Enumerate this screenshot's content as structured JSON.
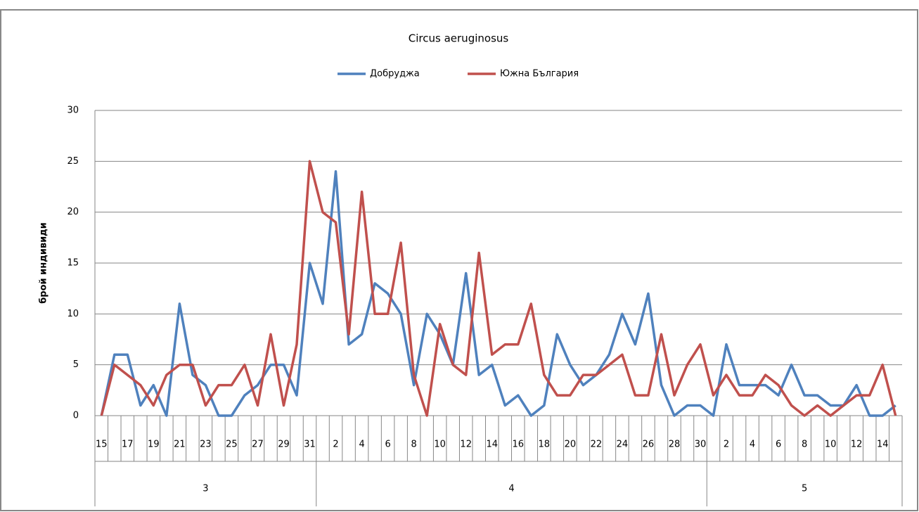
{
  "chart_data": {
    "type": "line",
    "title": "Circus aeruginosus",
    "y_label": "брой индивиди",
    "categories": [
      "15",
      null,
      "17",
      null,
      "19",
      null,
      "21",
      null,
      "23",
      null,
      "25",
      null,
      "27",
      null,
      "29",
      null,
      "31",
      null,
      "2",
      null,
      "4",
      null,
      "6",
      null,
      "8",
      null,
      "10",
      null,
      "12",
      null,
      "14",
      null,
      "16",
      null,
      "18",
      null,
      "20",
      null,
      "22",
      null,
      "24",
      null,
      "26",
      null,
      "28",
      null,
      "30",
      null,
      "2",
      null,
      "4",
      null,
      "6",
      null,
      "8",
      null,
      "10",
      null,
      "12",
      null,
      "14",
      null
    ],
    "groups": [
      {
        "name": "3",
        "size": 17
      },
      {
        "name": "4",
        "size": 30
      },
      {
        "name": "5",
        "size": 15
      }
    ],
    "series": [
      {
        "name": "Добруджа",
        "color": "#4f81bd",
        "values": [
          0,
          6,
          6,
          1,
          3,
          0,
          11,
          4,
          3,
          0,
          0,
          2,
          3,
          5,
          5,
          2,
          15,
          11,
          24,
          7,
          8,
          13,
          12,
          10,
          3,
          10,
          8,
          5,
          14,
          4,
          5,
          1,
          2,
          0,
          1,
          8,
          5,
          3,
          4,
          6,
          10,
          7,
          12,
          3,
          0,
          1,
          1,
          0,
          7,
          3,
          3,
          3,
          2,
          5,
          2,
          2,
          1,
          1,
          3,
          0,
          0,
          1
        ]
      },
      {
        "name": "Южна България",
        "color": "#c0504d",
        "values": [
          0,
          5,
          4,
          3,
          1,
          4,
          5,
          5,
          1,
          3,
          3,
          5,
          1,
          8,
          1,
          7,
          25,
          20,
          19,
          8,
          22,
          10,
          10,
          17,
          4,
          0,
          9,
          5,
          4,
          16,
          6,
          7,
          7,
          11,
          4,
          2,
          2,
          4,
          4,
          5,
          6,
          2,
          2,
          8,
          2,
          5,
          7,
          2,
          4,
          2,
          2,
          4,
          3,
          1,
          0,
          1,
          0,
          1,
          2,
          2,
          5,
          0
        ]
      }
    ],
    "ylim": [
      0,
      30
    ],
    "yticks": [
      0,
      5,
      10,
      15,
      20,
      25,
      30
    ],
    "grid": true,
    "legend": "top"
  }
}
